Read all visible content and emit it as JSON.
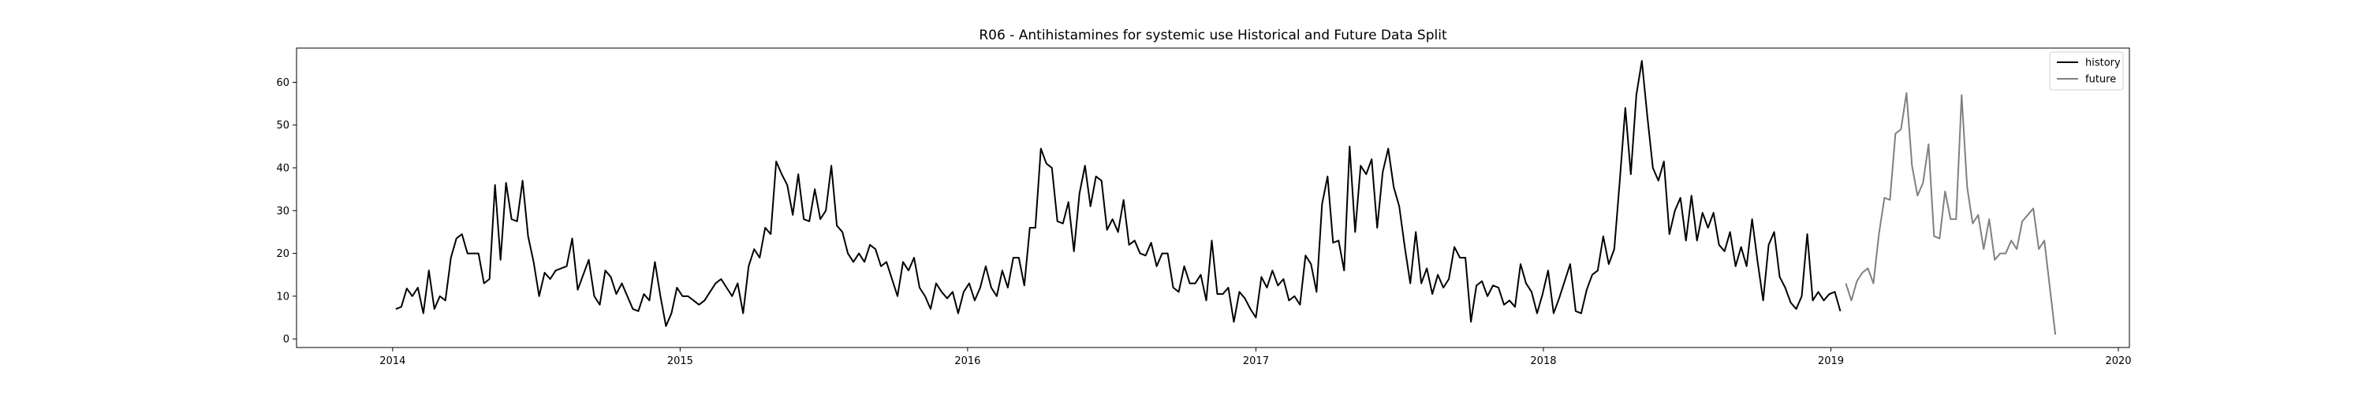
{
  "chart_data": {
    "type": "line",
    "title": "R06 - Antihistamines for systemic use Historical and Future Data Split",
    "xlabel": "",
    "ylabel": "",
    "xlim": [
      "2013-09-01",
      "2020-01-15"
    ],
    "ylim": [
      -2,
      68
    ],
    "x_ticks": [
      "2014",
      "2015",
      "2016",
      "2017",
      "2018",
      "2019",
      "2020"
    ],
    "y_ticks": [
      0,
      10,
      20,
      30,
      40,
      50,
      60
    ],
    "grid": false,
    "legend_position": "upper right",
    "series": [
      {
        "name": "history",
        "color": "#000000",
        "start_date": "2014-01-05",
        "frequency": "weekly",
        "values": [
          7,
          7.5,
          11.8,
          10,
          12,
          6,
          16,
          7,
          10,
          9,
          19,
          23.5,
          24.5,
          20,
          20,
          20,
          13,
          14,
          36,
          18.5,
          36.5,
          28,
          27.5,
          37,
          24,
          18,
          10,
          15.5,
          14,
          16,
          16.5,
          17,
          23.5,
          11.5,
          15,
          18.5,
          10,
          8,
          16,
          14.5,
          10.5,
          13,
          10,
          7,
          6.5,
          10.5,
          9,
          18,
          10,
          3,
          6,
          12,
          10,
          10,
          9,
          8,
          9,
          11,
          13,
          14,
          12,
          10,
          13,
          6,
          17,
          21,
          19,
          26,
          24.5,
          41.5,
          38.5,
          36,
          29,
          38.5,
          28,
          27.5,
          35,
          28,
          30,
          40.5,
          26.5,
          25,
          20,
          18,
          20,
          18,
          22,
          21,
          17,
          18,
          14,
          10,
          18,
          16,
          19,
          12,
          10,
          7,
          13,
          11,
          9.5,
          11,
          6,
          11,
          13,
          9,
          12,
          17,
          12,
          10,
          16,
          12,
          19,
          19,
          12.5,
          26,
          26,
          44.5,
          41,
          40,
          27.5,
          27,
          32,
          20.5,
          34,
          40.5,
          31,
          38,
          37,
          25.5,
          28,
          25,
          32.5,
          22,
          23,
          20,
          19.5,
          22.5,
          17,
          20,
          20,
          12,
          11,
          17,
          13,
          13,
          15,
          9,
          23,
          10.5,
          10.5,
          12,
          4,
          11,
          9.5,
          7,
          5,
          14.5,
          12,
          16,
          12.5,
          14,
          9,
          10,
          8,
          19.5,
          17.5,
          11,
          31.5,
          38,
          22.5,
          23,
          16,
          45,
          25,
          40.5,
          38.5,
          42,
          26,
          39,
          44.5,
          35.5,
          31,
          21.5,
          13,
          25,
          13,
          16.5,
          10.5,
          15,
          12,
          14,
          21.5,
          19,
          19,
          4,
          12.5,
          13.5,
          10,
          12.5,
          12,
          8,
          9,
          7.5,
          17.5,
          13,
          11,
          6,
          10.5,
          16,
          6,
          9.5,
          13.5,
          17.5,
          6.5,
          6,
          11.5,
          15,
          16,
          24,
          17.5,
          21,
          37,
          54,
          38.5,
          57,
          65,
          52,
          40,
          37,
          41.5,
          24.5,
          30,
          33,
          23,
          33.5,
          23,
          29.5,
          26,
          29.5,
          22,
          20.5,
          25,
          17,
          21.5,
          17,
          28,
          18,
          9,
          22,
          25,
          14.5,
          12,
          8.5,
          7,
          10,
          24.5,
          9,
          11,
          9,
          10.5,
          11,
          6.5
        ]
      },
      {
        "name": "future",
        "color": "#808080",
        "start_date": "2019-01-20",
        "frequency": "weekly",
        "values": [
          13,
          9,
          13.5,
          15.5,
          16.5,
          13,
          24.5,
          33,
          32.5,
          48,
          49,
          57.5,
          40.5,
          33.5,
          36.5,
          45.5,
          24,
          23.5,
          34.5,
          28,
          28,
          57,
          35.5,
          27,
          29,
          21,
          28,
          18.5,
          20,
          20,
          23,
          21,
          27.5,
          29,
          30.5,
          21,
          23,
          12,
          1
        ]
      }
    ]
  }
}
